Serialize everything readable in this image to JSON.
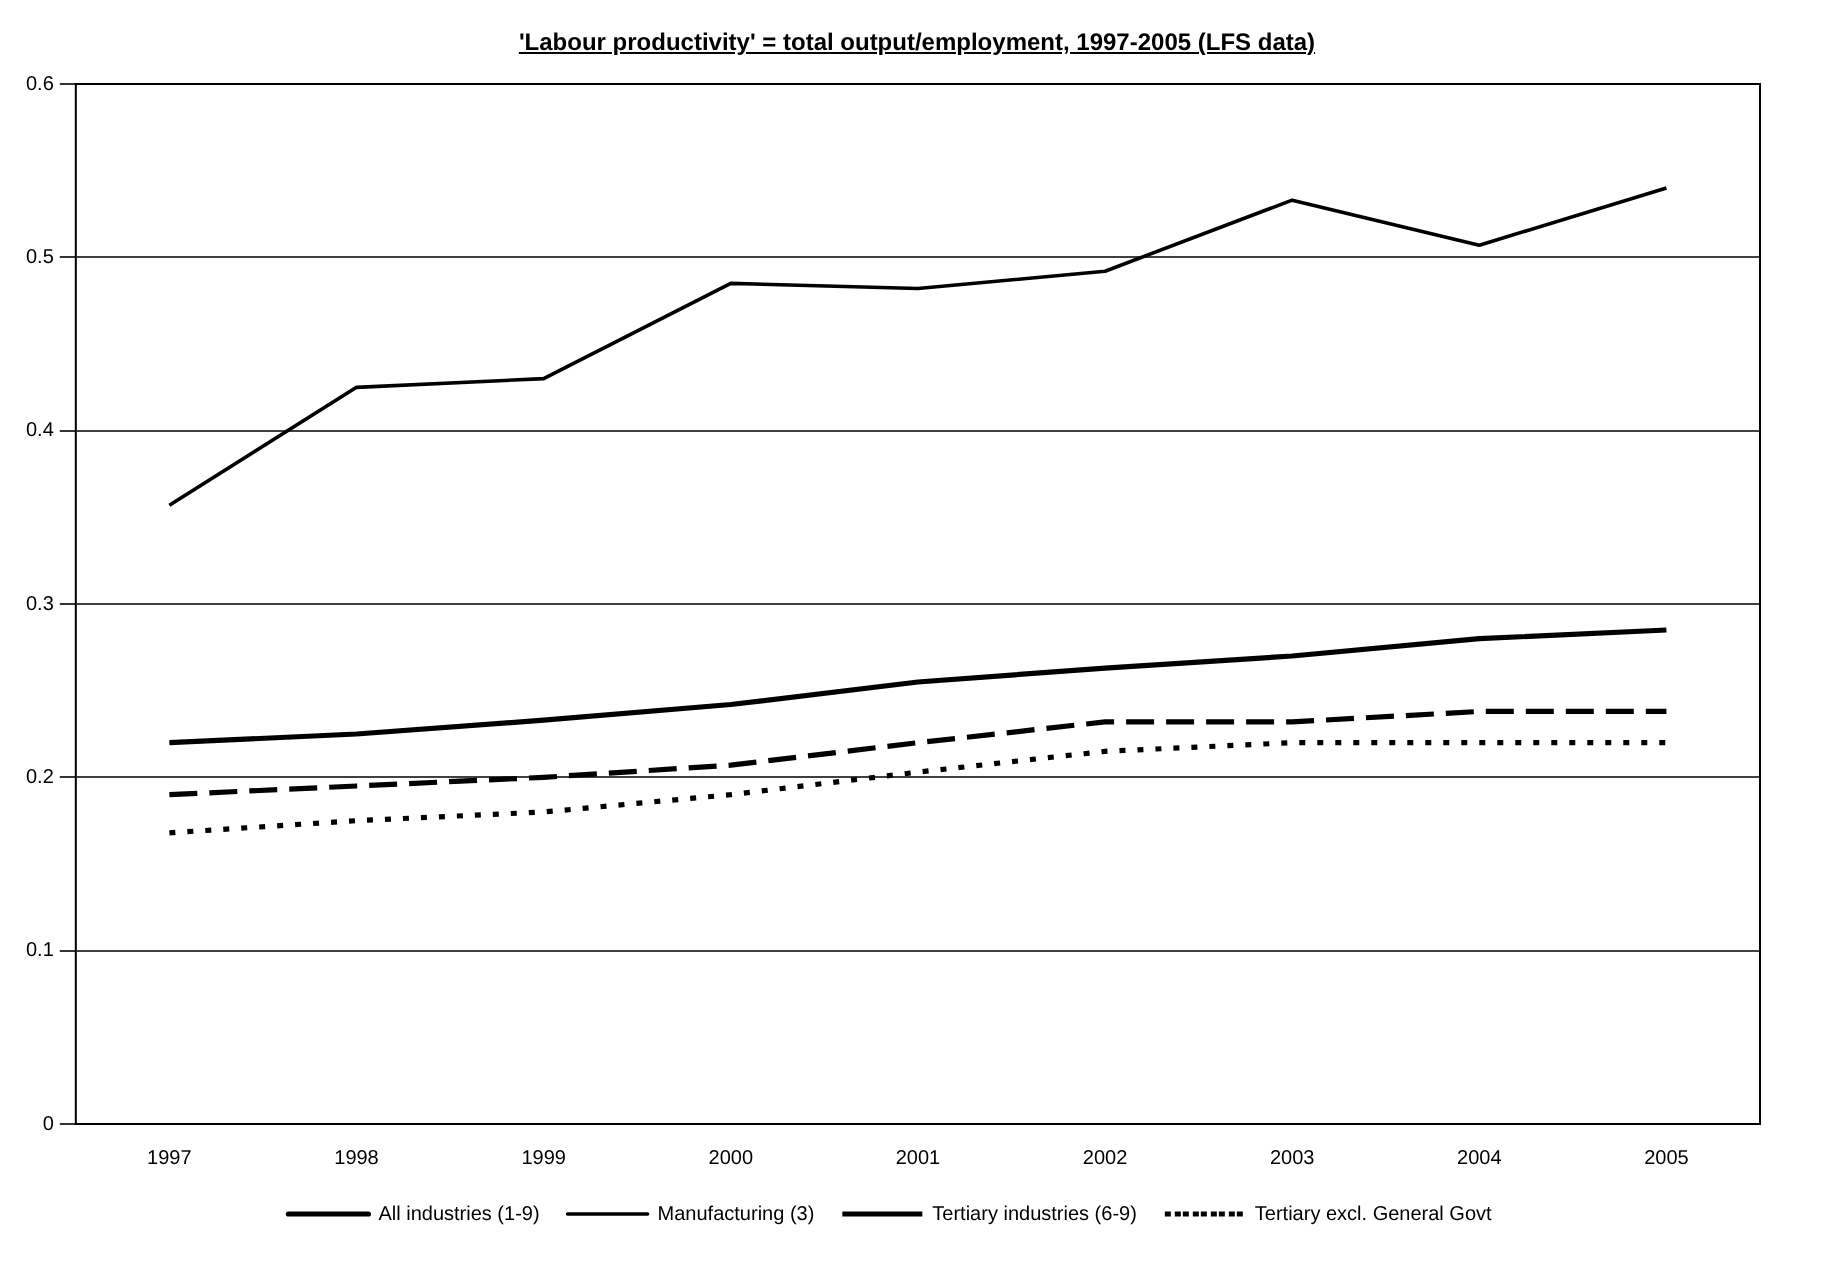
{
  "chart_data": {
    "type": "line",
    "title": "'Labour productivity' = total output/employment, 1997-2005 (LFS data)",
    "categories": [
      "1997",
      "1998",
      "1999",
      "2000",
      "2001",
      "2002",
      "2003",
      "2004",
      "2005"
    ],
    "series": [
      {
        "name": "All industries (1-9)",
        "color": "#000000",
        "line_style": "solid",
        "values": [
          0.22,
          0.225,
          0.233,
          0.242,
          0.255,
          0.263,
          0.27,
          0.28,
          0.285
        ]
      },
      {
        "name": "Manufacturing (3)",
        "color": "#000000",
        "line_style": "solid",
        "values": [
          0.357,
          0.425,
          0.43,
          0.485,
          0.482,
          0.492,
          0.533,
          0.507,
          0.54
        ]
      },
      {
        "name": "Tertiary industries (6-9)",
        "color": "#000000",
        "line_style": "dashed",
        "values": [
          0.19,
          0.195,
          0.2,
          0.207,
          0.22,
          0.232,
          0.232,
          0.238,
          0.238
        ]
      },
      {
        "name": "Tertiary excl. General Govt",
        "color": "#000000",
        "line_style": "dotted",
        "values": [
          0.168,
          0.175,
          0.18,
          0.19,
          0.203,
          0.215,
          0.22,
          0.22,
          0.22
        ]
      }
    ],
    "ylim": [
      0,
      0.6
    ],
    "yticks": [
      0,
      0.1,
      0.2,
      0.3,
      0.4,
      0.5,
      0.6
    ],
    "grid": "y",
    "legend": "bottom",
    "marker": "none"
  }
}
